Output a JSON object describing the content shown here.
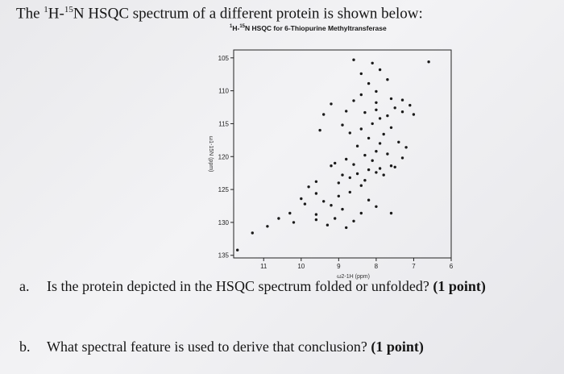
{
  "intro": {
    "prefix": "The ",
    "sup1": "1",
    "mid1": "H-",
    "sup2": "15",
    "mid2": "N HSQC spectrum of a different protein is shown below:"
  },
  "figure": {
    "title_sup1": "1",
    "title_mid1": "H-",
    "title_sup2": "15",
    "title_rest": "N HSQC for 6-Thiopurine Methyltransferase"
  },
  "chart_data": {
    "type": "scatter",
    "title": "1H-15N HSQC for 6-Thiopurine Methyltransferase",
    "xlabel": "ω2-1H (ppm)",
    "ylabel": "ω1-15N (ppm)",
    "xlim": [
      11.8,
      6.0
    ],
    "ylim": [
      103.8,
      135.4
    ],
    "x_ticks": [
      11,
      10,
      9,
      8,
      7,
      6
    ],
    "y_ticks": [
      105,
      110,
      115,
      120,
      125,
      130,
      135
    ],
    "grid": false,
    "series": [
      {
        "values": [
          [
            8.6,
            105.3
          ],
          [
            8.1,
            105.8
          ],
          [
            6.6,
            105.6
          ],
          [
            7.9,
            106.8
          ],
          [
            8.4,
            107.4
          ],
          [
            8.2,
            108.9
          ],
          [
            7.7,
            108.3
          ],
          [
            8.0,
            110.1
          ],
          [
            8.4,
            110.6
          ],
          [
            8.6,
            111.5
          ],
          [
            9.2,
            112.0
          ],
          [
            8.0,
            111.8
          ],
          [
            7.6,
            111.2
          ],
          [
            7.3,
            111.4
          ],
          [
            7.5,
            112.6
          ],
          [
            7.3,
            113.2
          ],
          [
            7.1,
            112.2
          ],
          [
            7.0,
            113.6
          ],
          [
            7.7,
            113.8
          ],
          [
            8.0,
            112.9
          ],
          [
            8.3,
            113.3
          ],
          [
            8.8,
            113.1
          ],
          [
            9.4,
            113.6
          ],
          [
            7.9,
            114.2
          ],
          [
            8.1,
            115.0
          ],
          [
            7.6,
            115.6
          ],
          [
            8.4,
            115.8
          ],
          [
            8.7,
            116.4
          ],
          [
            8.9,
            115.2
          ],
          [
            9.5,
            116.0
          ],
          [
            7.8,
            116.6
          ],
          [
            8.2,
            117.2
          ],
          [
            7.4,
            117.8
          ],
          [
            7.9,
            118.0
          ],
          [
            8.5,
            118.4
          ],
          [
            8.0,
            119.2
          ],
          [
            7.2,
            118.6
          ],
          [
            7.7,
            119.6
          ],
          [
            8.3,
            119.8
          ],
          [
            8.8,
            120.4
          ],
          [
            8.1,
            120.6
          ],
          [
            9.1,
            121.0
          ],
          [
            9.2,
            121.4
          ],
          [
            8.6,
            121.2
          ],
          [
            7.6,
            121.4
          ],
          [
            8.2,
            122.0
          ],
          [
            8.0,
            122.4
          ],
          [
            7.9,
            121.8
          ],
          [
            8.5,
            122.6
          ],
          [
            8.9,
            122.8
          ],
          [
            8.7,
            123.2
          ],
          [
            8.3,
            123.6
          ],
          [
            9.0,
            124.0
          ],
          [
            8.4,
            124.4
          ],
          [
            9.6,
            123.8
          ],
          [
            7.8,
            122.8
          ],
          [
            7.5,
            121.6
          ],
          [
            7.3,
            120.2
          ],
          [
            9.8,
            124.6
          ],
          [
            9.6,
            125.6
          ],
          [
            9.0,
            126.0
          ],
          [
            8.7,
            125.4
          ],
          [
            8.2,
            126.6
          ],
          [
            9.4,
            126.8
          ],
          [
            10.0,
            126.4
          ],
          [
            9.2,
            127.4
          ],
          [
            8.9,
            128.0
          ],
          [
            8.4,
            128.6
          ],
          [
            9.6,
            128.8
          ],
          [
            8.0,
            127.6
          ],
          [
            7.6,
            128.6
          ],
          [
            9.1,
            129.4
          ],
          [
            8.6,
            129.8
          ],
          [
            9.9,
            127.2
          ],
          [
            10.3,
            128.6
          ],
          [
            10.6,
            129.4
          ],
          [
            10.2,
            130.0
          ],
          [
            10.9,
            130.6
          ],
          [
            11.3,
            131.6
          ],
          [
            9.6,
            129.6
          ],
          [
            8.8,
            130.8
          ],
          [
            9.3,
            130.4
          ],
          [
            11.7,
            134.2
          ]
        ]
      }
    ]
  },
  "questions": [
    {
      "letter": "a.",
      "text": "Is the protein depicted in the HSQC spectrum folded or unfolded?",
      "points": "(1 point)"
    },
    {
      "letter": "b.",
      "text": "What spectral feature is used to derive that conclusion?",
      "points": "(1 point)"
    }
  ]
}
